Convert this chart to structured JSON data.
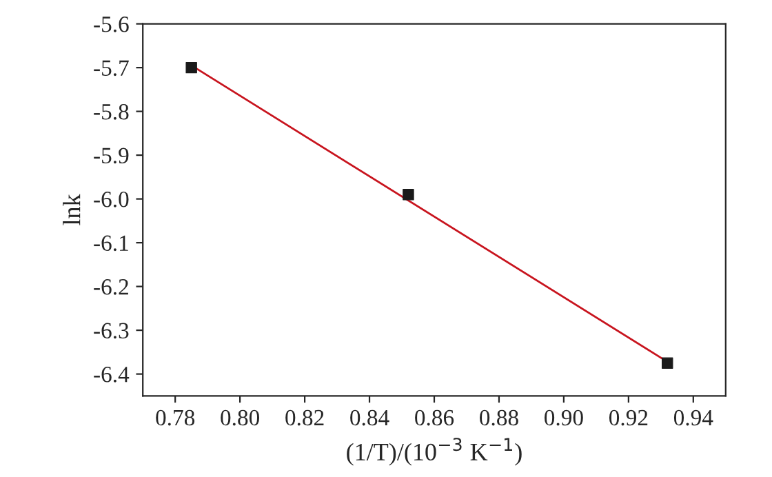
{
  "chart_data": {
    "type": "scatter",
    "xlabel": "(1/T)/(10$^{−3}$ K$^{−1}$)",
    "ylabel": "lnk",
    "xlim": [
      0.77,
      0.95
    ],
    "xticks": [
      0.78,
      {
        "value": 0.8,
        "label": "0.80"
      },
      0.82,
      0.84,
      0.86,
      0.88,
      {
        "value": 0.9,
        "label": "0.90"
      },
      0.92,
      0.94
    ],
    "ylim": [
      -6.45,
      -5.6
    ],
    "yticks": [
      -6.4,
      -6.3,
      -6.2,
      -6.1,
      {
        "value": -6.0,
        "label": "-6.0"
      },
      -5.9,
      -5.8,
      -5.7,
      -5.6
    ],
    "grid": false,
    "marker": "square",
    "series": [
      {
        "color": "#1a1a1a",
        "x": [
          0.785,
          0.852,
          0.932
        ],
        "values": [
          -5.7,
          -5.99,
          -6.375
        ]
      },
      {
        "type": "line",
        "color": "#c8141e",
        "marker": "none",
        "x": [
          0.785,
          0.932
        ],
        "values": [
          -5.695,
          -6.372
        ]
      }
    ]
  }
}
